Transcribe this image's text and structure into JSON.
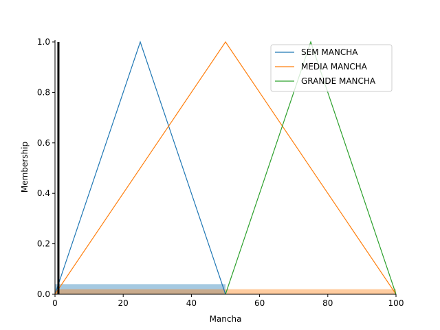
{
  "chart_data": {
    "type": "line",
    "xlabel": "Mancha",
    "ylabel": "Membership",
    "xlim": [
      0,
      100
    ],
    "ylim": [
      0,
      1
    ],
    "xticks": [
      0,
      20,
      40,
      60,
      80,
      100
    ],
    "yticks": [
      0.0,
      0.2,
      0.4,
      0.6,
      0.8,
      1.0
    ],
    "xtick_labels": [
      "0",
      "20",
      "40",
      "60",
      "80",
      "100"
    ],
    "ytick_labels": [
      "0.0",
      "0.2",
      "0.4",
      "0.6",
      "0.8",
      "1.0"
    ],
    "legend_position": "top-right",
    "grid": false,
    "series": [
      {
        "name": "SEM MANCHA",
        "color": "#1f77b4",
        "x": [
          0,
          25,
          50
        ],
        "y": [
          0,
          1,
          0
        ]
      },
      {
        "name": "MEDIA MANCHA",
        "color": "#ff7f0e",
        "x": [
          0,
          50,
          100
        ],
        "y": [
          0,
          1,
          0
        ]
      },
      {
        "name": "GRANDE MANCHA",
        "color": "#2ca02c",
        "x": [
          50,
          75,
          100
        ],
        "y": [
          0,
          1,
          0
        ]
      }
    ],
    "activation_fills": [
      {
        "series": "SEM MANCHA",
        "color": "#1f77b4",
        "x": [
          0,
          50
        ],
        "level": 0.04
      },
      {
        "series": "MEDIA MANCHA",
        "color": "#ff7f0e",
        "x": [
          0,
          100
        ],
        "level": 0.02
      }
    ],
    "input_marker": {
      "x": 1,
      "color": "#000000"
    }
  }
}
